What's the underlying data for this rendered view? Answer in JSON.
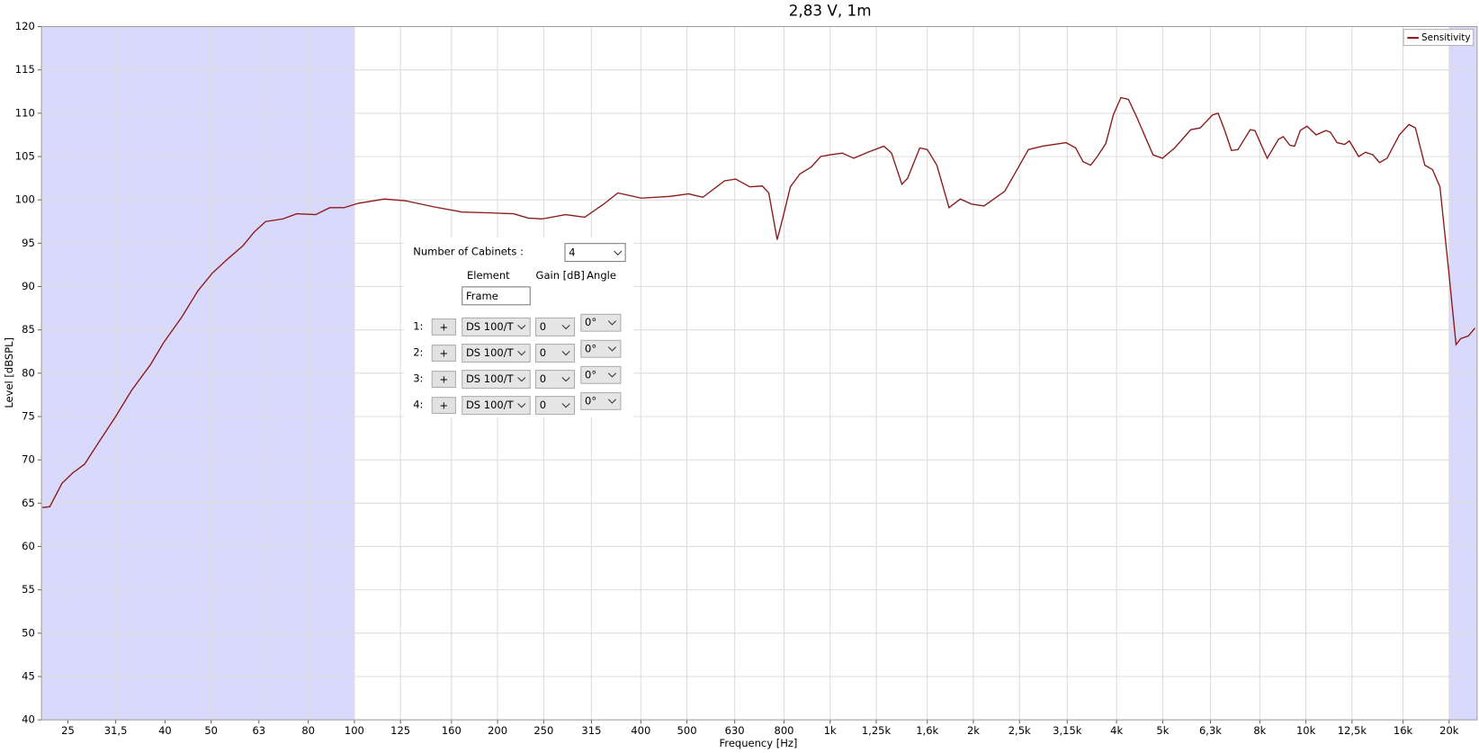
{
  "chart_data": {
    "type": "line",
    "title": "2,83 V, 1m",
    "x_label": "Frequency [Hz]",
    "y_label": "Level [dBSPL]",
    "log_x": true,
    "grid": true,
    "legend_position": "upper-right",
    "xlim": [
      22,
      22900
    ],
    "ylim": [
      40,
      120
    ],
    "xticks": [
      25,
      {
        "value": 31.5,
        "label": "31,5"
      },
      40,
      50,
      63,
      80,
      100,
      125,
      160,
      200,
      250,
      315,
      400,
      500,
      630,
      800,
      {
        "value": 1000,
        "label": "1k"
      },
      {
        "value": 1250,
        "label": "1,25k"
      },
      {
        "value": 1600,
        "label": "1,6k"
      },
      {
        "value": 2000,
        "label": "2k"
      },
      {
        "value": 2500,
        "label": "2,5k"
      },
      {
        "value": 3150,
        "label": "3,15k"
      },
      {
        "value": 4000,
        "label": "4k"
      },
      {
        "value": 5000,
        "label": "5k"
      },
      {
        "value": 6300,
        "label": "6,3k"
      },
      {
        "value": 8000,
        "label": "8k"
      },
      {
        "value": 10000,
        "label": "10k"
      },
      {
        "value": 12500,
        "label": "12,5k"
      },
      {
        "value": 16000,
        "label": "16k"
      },
      {
        "value": 20000,
        "label": "20k"
      }
    ],
    "yticks": [
      40,
      45,
      50,
      55,
      60,
      65,
      70,
      75,
      80,
      85,
      90,
      95,
      100,
      105,
      110,
      115,
      120
    ],
    "shaded_ranges": [
      [
        22,
        100
      ],
      [
        20000,
        22900
      ]
    ],
    "shade_color": "#d9d9fb",
    "x": [
      22.1,
      22.9,
      24.3,
      25.6,
      27.1,
      29.0,
      31.5,
      34.0,
      37.3,
      39.7,
      43.4,
      46.9,
      50.2,
      53.7,
      58.3,
      61.6,
      65.1,
      70.7,
      75.7,
      82.9,
      88.8,
      95.1,
      101.8,
      115.7,
      128,
      146.8,
      168.4,
      193,
      216,
      232,
      248,
      278,
      305,
      334,
      358,
      401,
      460,
      504,
      540,
      600,
      633,
      678,
      720,
      743,
      774,
      796,
      825,
      864,
      913,
      955,
      1000,
      1061,
      1121,
      1200,
      1297,
      1346,
      1415,
      1455,
      1543,
      1601,
      1676,
      1778,
      1878,
      1984,
      2106,
      2329,
      2610,
      2795,
      3133,
      3281,
      3402,
      3528,
      3643,
      3797,
      3937,
      4084,
      4236,
      4414,
      4771,
      4994,
      5300,
      5727,
      5995,
      6364,
      6540,
      6753,
      6973,
      7197,
      7637,
      7814,
      8291,
      8759,
      8962,
      9253,
      9467,
      9730,
      10050,
      10510,
      11010,
      11260,
      11630,
      12060,
      12340,
      12910,
      13340,
      13830,
      14280,
      14810,
      15720,
      16460,
      16990,
      17780,
      18450,
      19130,
      19940,
      20680,
      21160,
      21950,
      22660
    ],
    "series": [
      {
        "name": "Sensitivity",
        "color": "#8b1a1a",
        "values": [
          64.5,
          64.6,
          67.3,
          68.5,
          69.5,
          72,
          75,
          78,
          81,
          83.5,
          86.5,
          89.5,
          91.5,
          93,
          94.7,
          96.3,
          97.5,
          97.8,
          98.4,
          98.3,
          99.1,
          99.1,
          99.6,
          100.1,
          99.9,
          99.2,
          98.6,
          98.5,
          98.4,
          97.9,
          97.8,
          98.3,
          98,
          99.5,
          100.8,
          100.2,
          100.4,
          100.7,
          100.3,
          102.2,
          102.4,
          101.5,
          101.6,
          100.8,
          95.4,
          98,
          101.5,
          103,
          103.8,
          105,
          105.2,
          105.4,
          104.8,
          105.5,
          106.2,
          105.4,
          101.8,
          102.5,
          106,
          105.8,
          104,
          99.1,
          100.1,
          99.5,
          99.3,
          101,
          105.8,
          106.2,
          106.6,
          106,
          104.4,
          104,
          105,
          106.5,
          109.8,
          111.8,
          111.6,
          109.5,
          105.2,
          104.8,
          106,
          108.1,
          108.3,
          109.8,
          110,
          108,
          105.7,
          105.8,
          108.1,
          108,
          104.8,
          107,
          107.3,
          106.3,
          106.2,
          108,
          108.5,
          107.5,
          108,
          107.8,
          106.6,
          106.4,
          106.8,
          105,
          105.5,
          105.2,
          104.3,
          104.8,
          107.5,
          108.7,
          108.3,
          104,
          103.5,
          101.5,
          92,
          83.3,
          84,
          84.3,
          85.2
        ]
      }
    ]
  },
  "panel": {
    "cabinets_label": "Number of Cabinets :",
    "cabinets_value": "4",
    "headers": [
      "Element",
      "Gain [dB]",
      "Angle"
    ],
    "frame": "Frame",
    "rows": [
      {
        "label": "1:",
        "button": "+",
        "element": "DS 100/T",
        "gain": "0",
        "angle": "0°"
      },
      {
        "label": "2:",
        "button": "+",
        "element": "DS 100/T",
        "gain": "0",
        "angle": "0°"
      },
      {
        "label": "3:",
        "button": "+",
        "element": "DS 100/T",
        "gain": "0",
        "angle": "0°"
      },
      {
        "label": "4:",
        "button": "+",
        "element": "DS 100/T",
        "gain": "0",
        "angle": "0°"
      }
    ]
  }
}
